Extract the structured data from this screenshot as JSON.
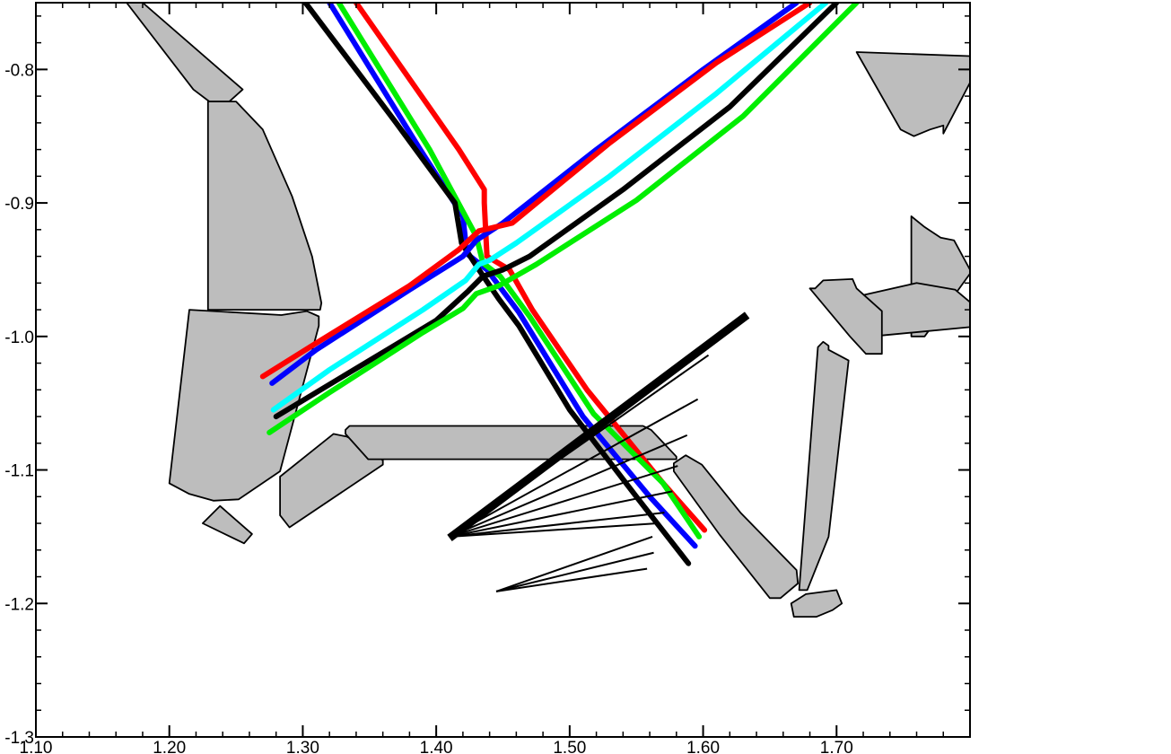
{
  "chart_data": {
    "type": "line",
    "title": "",
    "xlabel": "",
    "ylabel": "",
    "xlim": [
      1.1,
      1.8
    ],
    "ylim": [
      -1.3,
      -0.75
    ],
    "x_ticks": [
      {
        "value": 1.1,
        "label": "1.10"
      },
      {
        "value": 1.2,
        "label": "1.20"
      },
      {
        "value": 1.3,
        "label": "1.30"
      },
      {
        "value": 1.4,
        "label": "1.40"
      },
      {
        "value": 1.5,
        "label": "1.50"
      },
      {
        "value": 1.6,
        "label": "1.60"
      },
      {
        "value": 1.7,
        "label": "1.70"
      }
    ],
    "y_ticks": [
      {
        "value": -0.8,
        "label": "-0.8"
      },
      {
        "value": -0.9,
        "label": "-0.9"
      },
      {
        "value": -1.0,
        "label": "-1.0"
      },
      {
        "value": -1.1,
        "label": "-1.1"
      },
      {
        "value": -1.2,
        "label": "-1.2"
      },
      {
        "value": -1.3,
        "label": "-1.3"
      }
    ],
    "minor_tick_step": 0.02,
    "grid": false,
    "colors": {
      "grey": "#bdbdbd",
      "red": "#ff0000",
      "blue": "#0000ff",
      "cyan": "#00ffff",
      "green": "#00ee00",
      "black": "#000000"
    },
    "structures": [
      {
        "points": [
          [
            1.168,
            -0.75
          ],
          [
            1.18,
            -0.75
          ],
          [
            1.255,
            -0.815
          ],
          [
            1.245,
            -0.824
          ],
          [
            1.23,
            -0.824
          ],
          [
            1.218,
            -0.815
          ],
          [
            1.168,
            -0.75
          ]
        ]
      },
      {
        "points": [
          [
            1.229,
            -0.824
          ],
          [
            1.25,
            -0.824
          ],
          [
            1.27,
            -0.845
          ],
          [
            1.292,
            -0.895
          ],
          [
            1.307,
            -0.94
          ],
          [
            1.314,
            -0.975
          ],
          [
            1.313,
            -0.98
          ],
          [
            1.229,
            -0.98
          ],
          [
            1.229,
            -0.824
          ]
        ]
      },
      {
        "points": [
          [
            1.215,
            -0.98
          ],
          [
            1.284,
            -0.984
          ],
          [
            1.303,
            -0.981
          ],
          [
            1.312,
            -0.985
          ],
          [
            1.312,
            -0.992
          ],
          [
            1.283,
            -1.101
          ],
          [
            1.252,
            -1.122
          ],
          [
            1.233,
            -1.123
          ],
          [
            1.215,
            -1.118
          ],
          [
            1.2,
            -1.11
          ],
          [
            1.215,
            -0.98
          ]
        ]
      },
      {
        "points": [
          [
            1.238,
            -1.127
          ],
          [
            1.262,
            -1.148
          ],
          [
            1.256,
            -1.155
          ],
          [
            1.225,
            -1.14
          ],
          [
            1.238,
            -1.127
          ]
        ]
      },
      {
        "points": [
          [
            1.283,
            -1.134
          ],
          [
            1.283,
            -1.105
          ],
          [
            1.323,
            -1.073
          ],
          [
            1.333,
            -1.075
          ],
          [
            1.35,
            -1.084
          ],
          [
            1.36,
            -1.093
          ],
          [
            1.36,
            -1.096
          ],
          [
            1.29,
            -1.143
          ],
          [
            1.283,
            -1.134
          ]
        ]
      },
      {
        "points": [
          [
            1.332,
            -1.07
          ],
          [
            1.335,
            -1.067
          ],
          [
            1.555,
            -1.067
          ],
          [
            1.561,
            -1.07
          ],
          [
            1.58,
            -1.09
          ],
          [
            1.58,
            -1.092
          ],
          [
            1.349,
            -1.092
          ],
          [
            1.332,
            -1.073
          ],
          [
            1.332,
            -1.07
          ]
        ]
      },
      {
        "points": [
          [
            1.578,
            -1.095
          ],
          [
            1.587,
            -1.089
          ],
          [
            1.599,
            -1.096
          ],
          [
            1.628,
            -1.132
          ],
          [
            1.67,
            -1.175
          ],
          [
            1.671,
            -1.185
          ],
          [
            1.658,
            -1.196
          ],
          [
            1.65,
            -1.196
          ],
          [
            1.612,
            -1.148
          ],
          [
            1.578,
            -1.101
          ],
          [
            1.578,
            -1.095
          ]
        ]
      },
      {
        "points": [
          [
            1.756,
            -1.0
          ],
          [
            1.766,
            -1.0
          ],
          [
            1.8,
            -0.953
          ],
          [
            1.8,
            -0.95
          ],
          [
            1.788,
            -0.928
          ],
          [
            1.778,
            -0.926
          ],
          [
            1.766,
            -0.918
          ],
          [
            1.756,
            -0.91
          ],
          [
            1.756,
            -1.0
          ]
        ]
      },
      {
        "points": [
          [
            1.698,
            -0.974
          ],
          [
            1.76,
            -0.96
          ],
          [
            1.789,
            -0.965
          ],
          [
            1.808,
            -0.981
          ],
          [
            1.8,
            -0.993
          ],
          [
            1.726,
            -1.0
          ],
          [
            1.712,
            -0.999
          ],
          [
            1.698,
            -0.974
          ]
        ]
      },
      {
        "points": [
          [
            1.68,
            -0.964
          ],
          [
            1.684,
            -0.964
          ],
          [
            1.69,
            -0.958
          ],
          [
            1.712,
            -0.957
          ],
          [
            1.715,
            -0.964
          ],
          [
            1.734,
            -0.981
          ],
          [
            1.734,
            -1.013
          ],
          [
            1.722,
            -1.013
          ],
          [
            1.71,
            -1.0
          ],
          [
            1.68,
            -0.964
          ]
        ]
      },
      {
        "points": [
          [
            1.686,
            -1.008
          ],
          [
            1.69,
            -1.004
          ],
          [
            1.694,
            -1.007
          ],
          [
            1.694,
            -1.01
          ],
          [
            1.709,
            -1.018
          ],
          [
            1.694,
            -1.15
          ],
          [
            1.678,
            -1.19
          ],
          [
            1.672,
            -1.19
          ],
          [
            1.686,
            -1.008
          ]
        ]
      },
      {
        "points": [
          [
            1.666,
            -1.2
          ],
          [
            1.677,
            -1.193
          ],
          [
            1.7,
            -1.19
          ],
          [
            1.704,
            -1.2
          ],
          [
            1.697,
            -1.205
          ],
          [
            1.685,
            -1.21
          ],
          [
            1.668,
            -1.21
          ],
          [
            1.666,
            -1.2
          ]
        ]
      },
      {
        "points": [
          [
            1.715,
            -0.787
          ],
          [
            1.748,
            -0.845
          ],
          [
            1.758,
            -0.85
          ],
          [
            1.77,
            -0.845
          ],
          [
            1.78,
            -0.842
          ],
          [
            1.78,
            -0.848
          ],
          [
            1.8,
            -0.81
          ],
          [
            1.8,
            -0.79
          ],
          [
            1.715,
            -0.787
          ]
        ]
      }
    ],
    "series": [
      {
        "color": "red",
        "points": [
          [
            1.34,
            -0.75
          ],
          [
            1.417,
            -0.86
          ],
          [
            1.436,
            -0.89
          ],
          [
            1.436,
            -0.9
          ],
          [
            1.438,
            -0.94
          ],
          [
            1.455,
            -0.95
          ],
          [
            1.472,
            -0.98
          ],
          [
            1.513,
            -1.04
          ],
          [
            1.57,
            -1.11
          ],
          [
            1.601,
            -1.145
          ]
        ]
      },
      {
        "color": "blue",
        "points": [
          [
            1.32,
            -0.75
          ],
          [
            1.388,
            -0.86
          ],
          [
            1.42,
            -0.91
          ],
          [
            1.423,
            -0.938
          ],
          [
            1.438,
            -0.95
          ],
          [
            1.462,
            -0.982
          ],
          [
            1.51,
            -1.06
          ],
          [
            1.56,
            -1.12
          ],
          [
            1.594,
            -1.157
          ]
        ]
      },
      {
        "color": "green",
        "points": [
          [
            1.327,
            -0.75
          ],
          [
            1.395,
            -0.86
          ],
          [
            1.43,
            -0.925
          ],
          [
            1.435,
            -0.945
          ],
          [
            1.448,
            -0.955
          ],
          [
            1.47,
            -0.985
          ],
          [
            1.518,
            -1.058
          ],
          [
            1.57,
            -1.11
          ],
          [
            1.597,
            -1.15
          ]
        ]
      },
      {
        "color": "black",
        "points": [
          [
            1.302,
            -0.75
          ],
          [
            1.37,
            -0.84
          ],
          [
            1.414,
            -0.9
          ],
          [
            1.419,
            -0.93
          ],
          [
            1.432,
            -0.95
          ],
          [
            1.447,
            -0.972
          ],
          [
            1.462,
            -0.992
          ],
          [
            1.5,
            -1.055
          ],
          [
            1.55,
            -1.12
          ],
          [
            1.589,
            -1.17
          ]
        ]
      },
      {
        "color": "blue",
        "points": [
          [
            1.277,
            -1.035
          ],
          [
            1.31,
            -1.01
          ],
          [
            1.38,
            -0.965
          ],
          [
            1.42,
            -0.94
          ],
          [
            1.43,
            -0.928
          ],
          [
            1.45,
            -0.915
          ],
          [
            1.52,
            -0.86
          ],
          [
            1.6,
            -0.8
          ],
          [
            1.67,
            -0.75
          ]
        ]
      },
      {
        "color": "red",
        "points": [
          [
            1.27,
            -1.03
          ],
          [
            1.31,
            -1.005
          ],
          [
            1.38,
            -0.962
          ],
          [
            1.417,
            -0.935
          ],
          [
            1.432,
            -0.921
          ],
          [
            1.457,
            -0.915
          ],
          [
            1.53,
            -0.855
          ],
          [
            1.61,
            -0.795
          ],
          [
            1.68,
            -0.75
          ]
        ]
      },
      {
        "color": "cyan",
        "points": [
          [
            1.278,
            -1.055
          ],
          [
            1.32,
            -1.025
          ],
          [
            1.39,
            -0.98
          ],
          [
            1.422,
            -0.958
          ],
          [
            1.432,
            -0.946
          ],
          [
            1.44,
            -0.943
          ],
          [
            1.46,
            -0.93
          ],
          [
            1.53,
            -0.88
          ],
          [
            1.61,
            -0.818
          ],
          [
            1.692,
            -0.75
          ]
        ]
      },
      {
        "color": "black",
        "points": [
          [
            1.28,
            -1.06
          ],
          [
            1.33,
            -1.03
          ],
          [
            1.4,
            -0.988
          ],
          [
            1.424,
            -0.966
          ],
          [
            1.435,
            -0.955
          ],
          [
            1.45,
            -0.95
          ],
          [
            1.47,
            -0.94
          ],
          [
            1.54,
            -0.89
          ],
          [
            1.62,
            -0.828
          ],
          [
            1.7,
            -0.75
          ]
        ]
      },
      {
        "color": "green",
        "points": [
          [
            1.275,
            -1.072
          ],
          [
            1.32,
            -1.042
          ],
          [
            1.39,
            -0.997
          ],
          [
            1.42,
            -0.979
          ],
          [
            1.43,
            -0.968
          ],
          [
            1.447,
            -0.962
          ],
          [
            1.475,
            -0.946
          ],
          [
            1.55,
            -0.898
          ],
          [
            1.63,
            -0.835
          ],
          [
            1.715,
            -0.75
          ]
        ]
      }
    ],
    "thick_line": {
      "points": [
        [
          1.41,
          -1.151
        ],
        [
          1.633,
          -0.984
        ]
      ]
    },
    "fans": [
      {
        "origin": [
          1.41,
          -1.15
        ],
        "ends": [
          [
            1.604,
            -1.014
          ],
          [
            1.596,
            -1.047
          ],
          [
            1.588,
            -1.074
          ],
          [
            1.581,
            -1.097
          ],
          [
            1.577,
            -1.116
          ],
          [
            1.571,
            -1.132
          ],
          [
            1.566,
            -1.14
          ]
        ]
      },
      {
        "origin": [
          1.445,
          -1.191
        ],
        "ends": [
          [
            1.562,
            -1.15
          ],
          [
            1.563,
            -1.162
          ],
          [
            1.558,
            -1.174
          ]
        ]
      }
    ]
  }
}
